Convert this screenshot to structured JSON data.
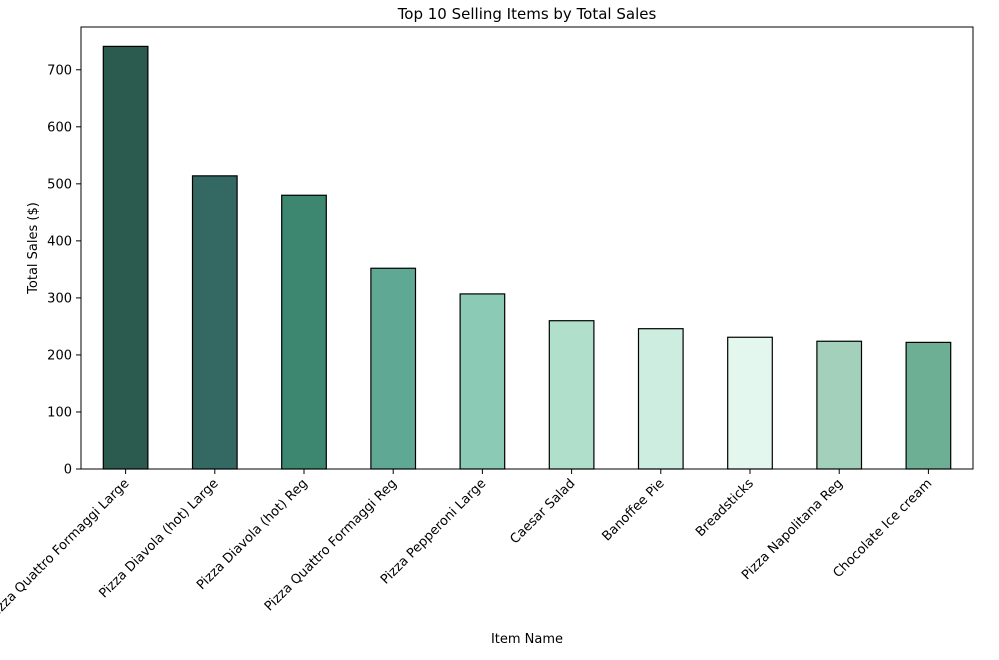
{
  "chart_data": {
    "type": "bar",
    "title": "Top 10 Selling Items by Total Sales",
    "xlabel": "Item Name",
    "ylabel": "Total Sales ($)",
    "categories": [
      "Pizza Quattro Formaggi Large",
      "Pizza Diavola (hot) Large",
      "Pizza Diavola (hot) Reg",
      "Pizza Quattro Formaggi Reg",
      "Pizza Pepperoni Large",
      "Caesar Salad",
      "Banoffee Pie",
      "Breadsticks",
      "Pizza Napolitana Reg",
      "Chocolate Ice cream"
    ],
    "values": [
      741,
      514,
      480,
      352,
      307,
      260,
      246,
      231,
      224,
      222
    ],
    "colors": [
      "#2b5a4f",
      "#336962",
      "#3d8670",
      "#5fa994",
      "#8bcab5",
      "#b0e0cb",
      "#ccede0",
      "#e4f7ef",
      "#a3d0bb",
      "#6daf94"
    ],
    "ylim": [
      0,
      775
    ],
    "yticks": [
      0,
      100,
      200,
      300,
      400,
      500,
      600,
      700
    ],
    "grid": false,
    "legend": false
  }
}
